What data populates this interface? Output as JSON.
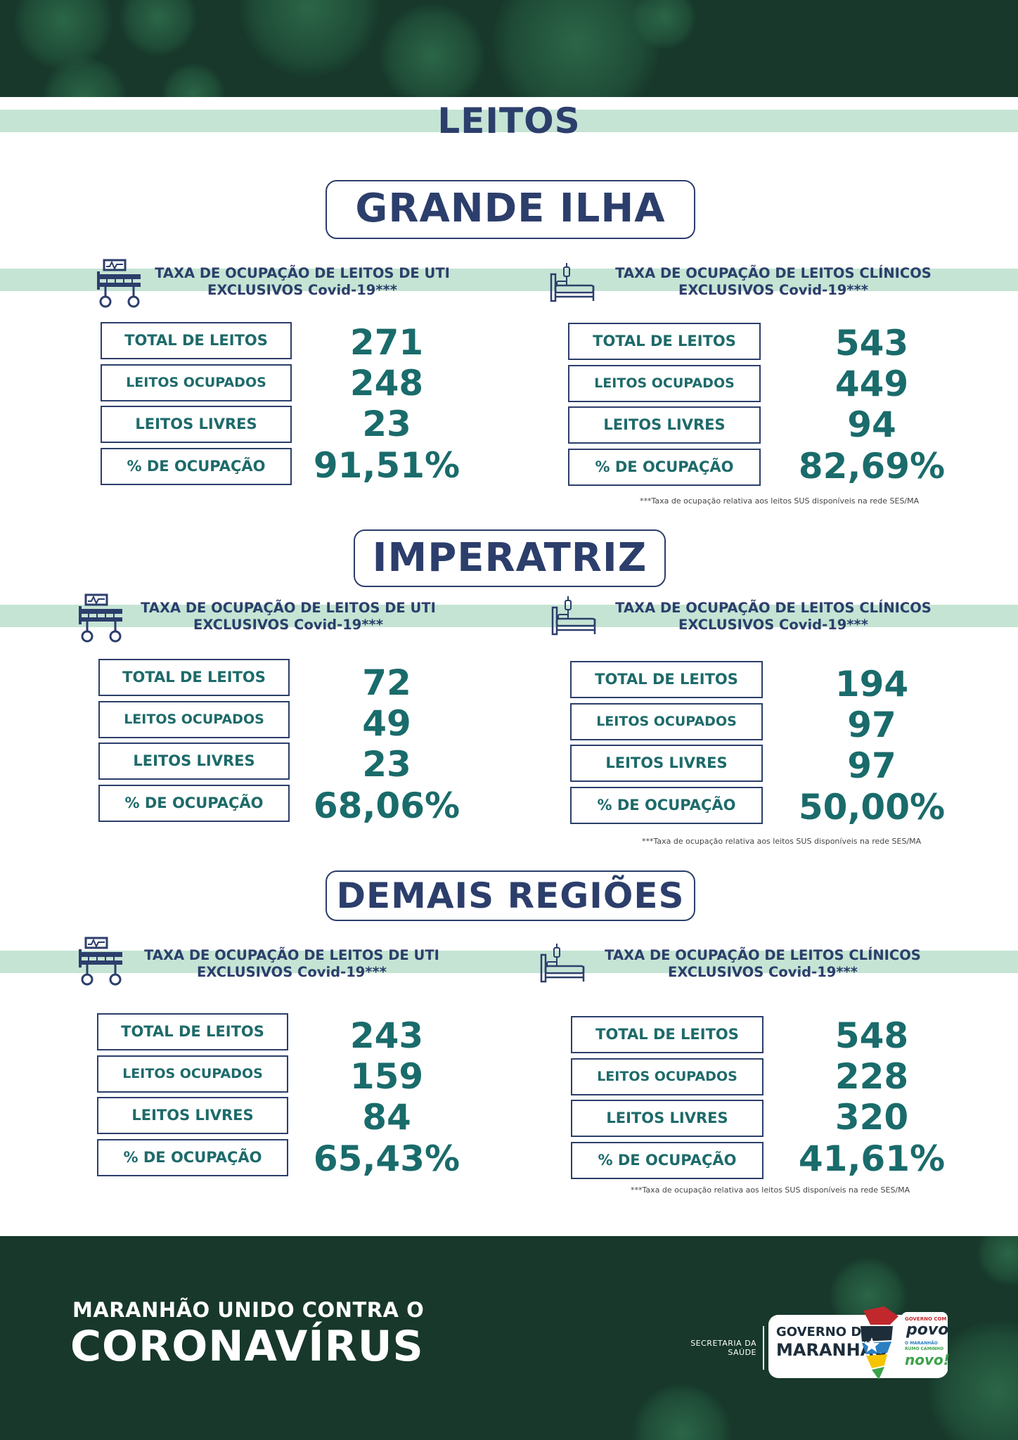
{
  "page_title": "LEITOS",
  "headings": {
    "uti_line1": "TAXA DE OCUPAÇÃO DE LEITOS DE UTI",
    "clin_line1": "TAXA DE OCUPAÇÃO DE LEITOS CLÍNICOS",
    "line2": "EXCLUSIVOS Covid-19***"
  },
  "labels": {
    "total": "TOTAL DE LEITOS",
    "ocupados": "LEITOS OCUPADOS",
    "livres": "LEITOS LIVRES",
    "pct": "% DE OCUPAÇÃO"
  },
  "footnote": "***Taxa de ocupação relativa aos leitos SUS disponíveis na rede SES/MA",
  "regions": [
    {
      "name": "GRANDE ILHA",
      "uti": {
        "total": "271",
        "ocupados": "248",
        "livres": "23",
        "pct": "91,51%"
      },
      "clinicos": {
        "total": "543",
        "ocupados": "449",
        "livres": "94",
        "pct": "82,69%"
      }
    },
    {
      "name": "IMPERATRIZ",
      "uti": {
        "total": "72",
        "ocupados": "49",
        "livres": "23",
        "pct": "68,06%"
      },
      "clinicos": {
        "total": "194",
        "ocupados": "97",
        "livres": "97",
        "pct": "50,00%"
      }
    },
    {
      "name": "DEMAIS REGIÕES",
      "uti": {
        "total": "243",
        "ocupados": "159",
        "livres": "84",
        "pct": "65,43%"
      },
      "clinicos": {
        "total": "548",
        "ocupados": "228",
        "livres": "320",
        "pct": "41,61%"
      }
    }
  ],
  "footer": {
    "line1": "MARANHÃO UNIDO CONTRA O",
    "line2": "CORONAVÍRUS",
    "secretaria_line1": "SECRETARIA DA",
    "secretaria_line2": "SAÚDE",
    "gov_line1": "GOVERNO DO",
    "gov_line2": "MARANHÃO",
    "slogan1": "GOVERNO COM",
    "slogan2": "povo",
    "slogan3": "O MARANHÃO",
    "slogan4": "RUMO CAMINHO",
    "slogan5": "novo!"
  },
  "colors": {
    "navy": "#2c3e6b",
    "teal": "#1a6b6b",
    "mint": "#c5e4d4",
    "dark_green": "#17382b"
  }
}
